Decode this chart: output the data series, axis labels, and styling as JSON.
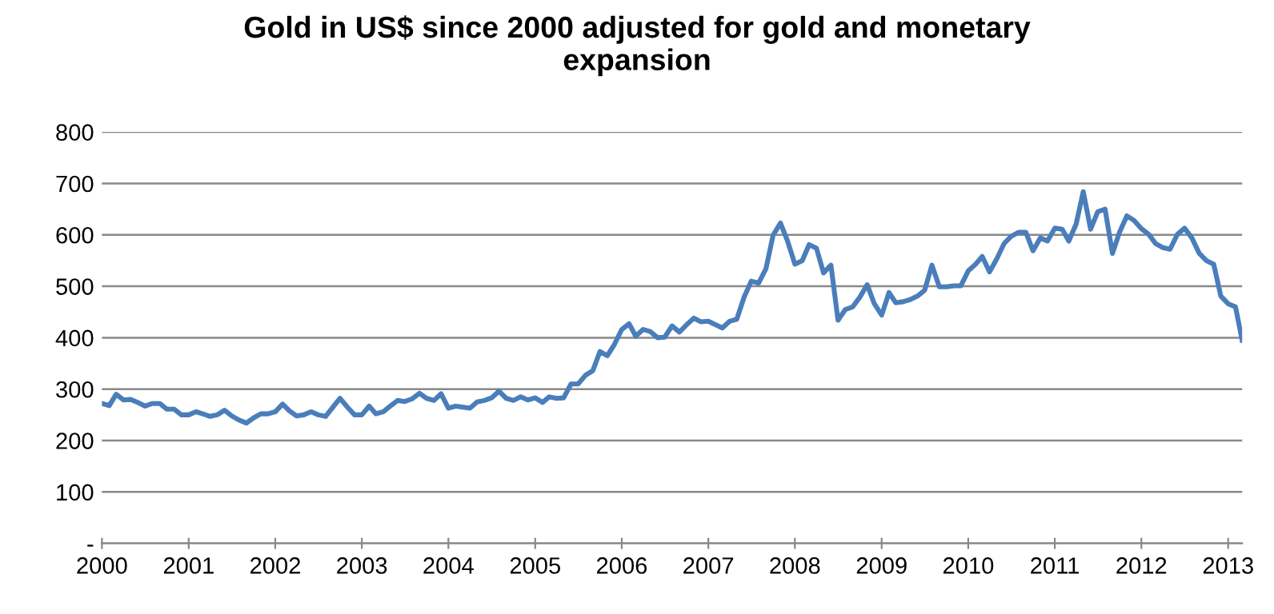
{
  "chart_data": {
    "type": "line",
    "title": "Gold in US$ since 2000 adjusted for gold and monetary\nexpansion",
    "x": [
      "2000-01",
      "2000-02",
      "2000-03",
      "2000-04",
      "2000-05",
      "2000-06",
      "2000-07",
      "2000-08",
      "2000-09",
      "2000-10",
      "2000-11",
      "2000-12",
      "2001-01",
      "2001-02",
      "2001-03",
      "2001-04",
      "2001-05",
      "2001-06",
      "2001-07",
      "2001-08",
      "2001-09",
      "2001-10",
      "2001-11",
      "2001-12",
      "2002-01",
      "2002-02",
      "2002-03",
      "2002-04",
      "2002-05",
      "2002-06",
      "2002-07",
      "2002-08",
      "2002-09",
      "2002-10",
      "2002-11",
      "2002-12",
      "2003-01",
      "2003-02",
      "2003-03",
      "2003-04",
      "2003-05",
      "2003-06",
      "2003-07",
      "2003-08",
      "2003-09",
      "2003-10",
      "2003-11",
      "2003-12",
      "2004-01",
      "2004-02",
      "2004-03",
      "2004-04",
      "2004-05",
      "2004-06",
      "2004-07",
      "2004-08",
      "2004-09",
      "2004-10",
      "2004-11",
      "2004-12",
      "2005-01",
      "2005-02",
      "2005-03",
      "2005-04",
      "2005-05",
      "2005-06",
      "2005-07",
      "2005-08",
      "2005-09",
      "2005-10",
      "2005-11",
      "2005-12",
      "2006-01",
      "2006-02",
      "2006-03",
      "2006-04",
      "2006-05",
      "2006-06",
      "2006-07",
      "2006-08",
      "2006-09",
      "2006-10",
      "2006-11",
      "2006-12",
      "2007-01",
      "2007-02",
      "2007-03",
      "2007-04",
      "2007-05",
      "2007-06",
      "2007-07",
      "2007-08",
      "2007-09",
      "2007-10",
      "2007-11",
      "2007-12",
      "2008-01",
      "2008-02",
      "2008-03",
      "2008-04",
      "2008-05",
      "2008-06",
      "2008-07",
      "2008-08",
      "2008-09",
      "2008-10",
      "2008-11",
      "2008-12",
      "2009-01",
      "2009-02",
      "2009-03",
      "2009-04",
      "2009-05",
      "2009-06",
      "2009-07",
      "2009-08",
      "2009-09",
      "2009-10",
      "2009-11",
      "2009-12",
      "2010-01",
      "2010-02",
      "2010-03",
      "2010-04",
      "2010-05",
      "2010-06",
      "2010-07",
      "2010-08",
      "2010-09",
      "2010-10",
      "2010-11",
      "2010-12",
      "2011-01",
      "2011-02",
      "2011-03",
      "2011-04",
      "2011-05",
      "2011-06",
      "2011-07",
      "2011-08",
      "2011-09",
      "2011-10",
      "2011-11",
      "2011-12",
      "2012-01",
      "2012-02",
      "2012-03",
      "2012-04",
      "2012-05",
      "2012-06",
      "2012-07",
      "2012-08",
      "2012-09",
      "2012-10",
      "2012-11",
      "2012-12",
      "2013-01",
      "2013-02",
      "2013-03"
    ],
    "series": [
      {
        "color": "#4a7ebb",
        "values": [
          272,
          268,
          290,
          279,
          280,
          274,
          267,
          272,
          272,
          261,
          261,
          250,
          250,
          256,
          252,
          247,
          250,
          259,
          248,
          240,
          234,
          244,
          252,
          252,
          256,
          271,
          258,
          248,
          250,
          256,
          250,
          247,
          265,
          282,
          265,
          250,
          250,
          267,
          252,
          256,
          267,
          278,
          276,
          281,
          292,
          282,
          278,
          291,
          263,
          267,
          265,
          263,
          275,
          278,
          283,
          296,
          282,
          278,
          285,
          279,
          283,
          274,
          285,
          282,
          283,
          310,
          310,
          327,
          336,
          373,
          365,
          387,
          416,
          427,
          403,
          416,
          412,
          400,
          401,
          423,
          411,
          425,
          438,
          431,
          432,
          425,
          419,
          432,
          436,
          479,
          510,
          506,
          534,
          599,
          623,
          588,
          543,
          550,
          581,
          574,
          526,
          541,
          434,
          455,
          460,
          479,
          503,
          466,
          444,
          488,
          468,
          470,
          474,
          481,
          492,
          541,
          499,
          499,
          501,
          501,
          530,
          543,
          558,
          528,
          553,
          583,
          597,
          605,
          605,
          569,
          594,
          588,
          613,
          611,
          588,
          621,
          684,
          611,
          645,
          650,
          564,
          605,
          637,
          628,
          612,
          601,
          583,
          575,
          572,
          601,
          613,
          594,
          564,
          550,
          543,
          481,
          466,
          460,
          395
        ]
      }
    ],
    "xlim": [
      "2000-01",
      "2013-03"
    ],
    "xticks": [
      "2000",
      "2001",
      "2002",
      "2003",
      "2004",
      "2005",
      "2006",
      "2007",
      "2008",
      "2009",
      "2010",
      "2011",
      "2012",
      "2013"
    ],
    "ylim": [
      0,
      800
    ],
    "yticks": [
      {
        "value": 0,
        "label": "-"
      },
      100,
      200,
      300,
      400,
      500,
      600,
      700,
      800
    ],
    "grid": "y",
    "legend": false,
    "marker": "none",
    "line_style": "solid"
  }
}
